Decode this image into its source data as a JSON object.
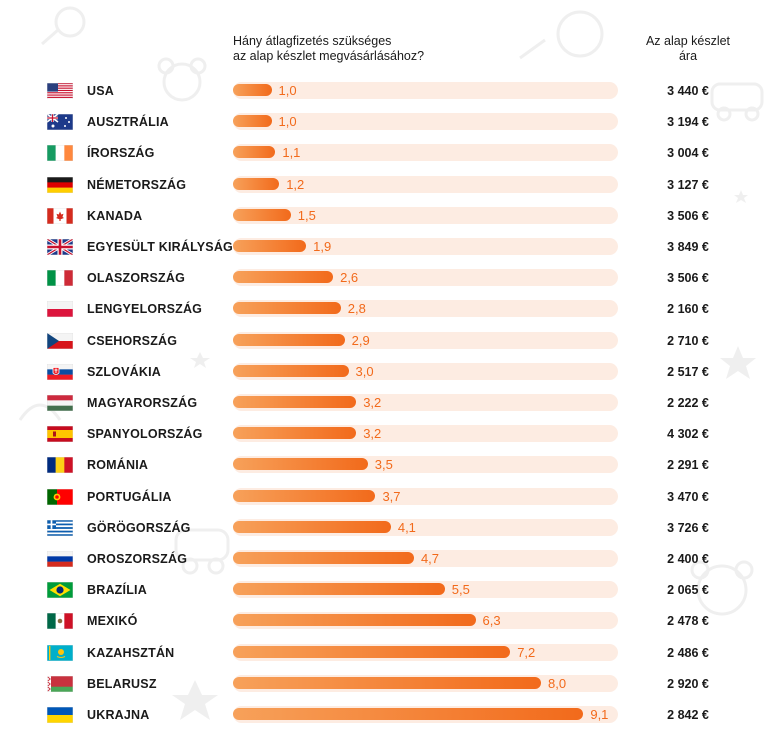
{
  "colors": {
    "bar_start": "#f7a15a",
    "bar_end": "#f26a1b",
    "track": "#fdece2",
    "value_text": "#f26a1b"
  },
  "header": {
    "left_line1": "Hány átlagfizetés szükséges",
    "left_line2": "az alap készlet megvásárlásához?",
    "right_line1": "Az alap készlet",
    "right_line2": "ára"
  },
  "chart_data": {
    "type": "bar",
    "orientation": "horizontal",
    "xlim": [
      0,
      10
    ],
    "categories": [
      "USA",
      "AUSZTRÁLIA",
      "ÍRORSZÁG",
      "NÉMETORSZÁG",
      "KANADA",
      "EGYESÜLT KIRÁLYSÁG",
      "OLASZORSZÁG",
      "LENGYELORSZÁG",
      "CSEHORSZÁG",
      "SZLOVÁKIA",
      "MAGYARORSZÁG",
      "SPANYOLORSZÁG",
      "ROMÁNIA",
      "PORTUGÁLIA",
      "GÖRÖGORSZÁG",
      "OROSZORSZÁG",
      "BRAZÍLIA",
      "MEXIKÓ",
      "KAZAHSZTÁN",
      "BELARUSZ",
      "UKRAJNA"
    ],
    "values": [
      1.0,
      1.0,
      1.1,
      1.2,
      1.5,
      1.9,
      2.6,
      2.8,
      2.9,
      3.0,
      3.2,
      3.2,
      3.5,
      3.7,
      4.1,
      4.7,
      5.5,
      6.3,
      7.2,
      8.0,
      9.1
    ],
    "value_labels": [
      "1,0",
      "1,0",
      "1,1",
      "1,2",
      "1,5",
      "1,9",
      "2,6",
      "2,8",
      "2,9",
      "3,0",
      "3,2",
      "3,2",
      "3,5",
      "3,7",
      "4,1",
      "4,7",
      "5,5",
      "6,3",
      "7,2",
      "8,0",
      "9,1"
    ],
    "prices": [
      "3 440 €",
      "3 194 €",
      "3 004 €",
      "3 127 €",
      "3 506 €",
      "3 849 €",
      "3 506 €",
      "2 160 €",
      "2 710 €",
      "2 517 €",
      "2 222 €",
      "4 302 €",
      "2 291 €",
      "3 470 €",
      "3 726 €",
      "2 400 €",
      "2 065 €",
      "2 478 €",
      "2 486 €",
      "2 920 €",
      "2 842 €"
    ],
    "flags": [
      "us-flag-icon",
      "au-flag-icon",
      "ie-flag-icon",
      "de-flag-icon",
      "ca-flag-icon",
      "gb-flag-icon",
      "it-flag-icon",
      "pl-flag-icon",
      "cz-flag-icon",
      "sk-flag-icon",
      "hu-flag-icon",
      "es-flag-icon",
      "ro-flag-icon",
      "pt-flag-icon",
      "gr-flag-icon",
      "ru-flag-icon",
      "br-flag-icon",
      "mx-flag-icon",
      "kz-flag-icon",
      "by-flag-icon",
      "ua-flag-icon"
    ]
  }
}
